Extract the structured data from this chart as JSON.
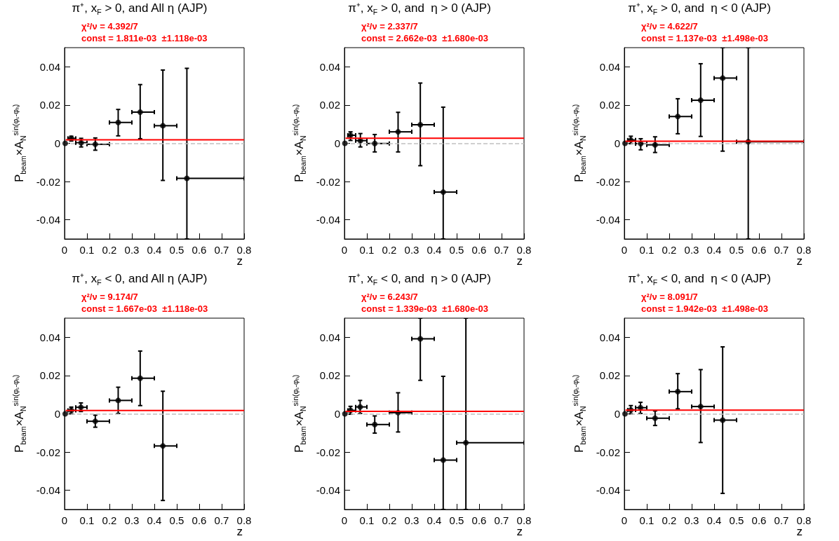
{
  "chart_data": [
    {
      "type": "scatter",
      "title": "π⁺, x$_{F}$ > 0, and All η (AJP)",
      "xlabel": "z",
      "ylabel": "P$_{beam}$×A$_{N}$$^{sin(φₛ-φₕ)}$",
      "xlim": [
        0,
        0.8
      ],
      "ylim": [
        -0.05,
        0.05
      ],
      "xticks": [
        0,
        0.1,
        0.2,
        0.3,
        0.4,
        0.5,
        0.6,
        0.7,
        0.8
      ],
      "yticks": [
        -0.04,
        -0.02,
        0,
        0.02,
        0.04
      ],
      "marker": "circle",
      "annotations": [
        "χ²/ν = 4.392/7",
        "const = 1.811e-03  ±1.118e-03"
      ],
      "ref_lines": [
        {
          "axis": "y",
          "value": 0,
          "color": "#c0c0c0",
          "line_style": "dashed"
        }
      ],
      "series": [
        {
          "type": "scatter",
          "color": "#000000",
          "x": [
            0.003,
            0.03,
            0.074,
            0.137,
            0.239,
            0.337,
            0.438,
            0.545
          ],
          "values": [
            0,
            0.0026,
            0.0003,
            -0.0005,
            0.0109,
            0.0163,
            0.0092,
            -0.0183
          ],
          "errors": [
            null,
            [
              0.0012,
              0.0037
            ],
            [
              -0.0019,
              0.0026
            ],
            [
              -0.0036,
              0.0028
            ],
            [
              0.0039,
              0.0177
            ],
            [
              0.0024,
              0.0307
            ],
            [
              -0.0194,
              0.0383
            ],
            [
              -0.05,
              0.0392
            ]
          ],
          "xerrors": [
            null,
            [
              0.015,
              0.05
            ],
            [
              0.05,
              0.1
            ],
            [
              0.1,
              0.2
            ],
            [
              0.2,
              0.3
            ],
            [
              0.3,
              0.4
            ],
            [
              0.4,
              0.5
            ],
            [
              0.5,
              0.8
            ]
          ]
        },
        {
          "type": "line",
          "color": "#ff0000",
          "marker": "none",
          "x": [
            0.005,
            0.8
          ],
          "values": [
            0.0018,
            0.0018
          ]
        }
      ]
    },
    {
      "type": "scatter",
      "title": "π⁺, x$_{F}$ > 0, and  η > 0 (AJP)",
      "xlabel": "z",
      "ylabel": "P$_{beam}$×A$_{N}$$^{sin(φₛ-φₕ)}$",
      "xlim": [
        0,
        0.8
      ],
      "ylim": [
        -0.05,
        0.05
      ],
      "xticks": [
        0,
        0.1,
        0.2,
        0.3,
        0.4,
        0.5,
        0.6,
        0.7,
        0.8
      ],
      "yticks": [
        -0.04,
        -0.02,
        0,
        0.02,
        0.04
      ],
      "marker": "circle",
      "annotations": [
        "χ²/ν = 2.337/7",
        "const = 2.662e-03  ±1.680e-03"
      ],
      "ref_lines": [
        {
          "axis": "y",
          "value": 0,
          "color": "#c0c0c0",
          "line_style": "dashed"
        }
      ],
      "series": [
        {
          "type": "scatter",
          "color": "#000000",
          "x": [
            0.002,
            0.027,
            0.071,
            0.135,
            0.239,
            0.338,
            0.44
          ],
          "values": [
            0,
            0.0042,
            0.0014,
            -0.0001,
            0.006,
            0.0097,
            -0.0255
          ],
          "errors": [
            null,
            [
              0.0015,
              0.006
            ],
            [
              -0.0019,
              0.0051
            ],
            [
              -0.0045,
              0.0046
            ],
            [
              -0.0045,
              0.0162
            ],
            [
              -0.0117,
              0.0315
            ],
            [
              -0.05,
              0.0189
            ]
          ],
          "xerrors": [
            null,
            [
              0.015,
              0.05
            ],
            [
              0.05,
              0.1
            ],
            [
              0.1,
              0.2
            ],
            [
              0.2,
              0.3
            ],
            [
              0.3,
              0.4
            ],
            [
              0.4,
              0.5
            ]
          ]
        },
        {
          "type": "line",
          "color": "#ff0000",
          "marker": "none",
          "x": [
            0.005,
            0.8
          ],
          "values": [
            0.0027,
            0.0027
          ]
        }
      ]
    },
    {
      "type": "scatter",
      "title": "π⁺, x$_{F}$ > 0, and  η < 0 (AJP)",
      "xlabel": "z",
      "ylabel": "P$_{beam}$×A$_{N}$$^{sin(φₛ-φₕ)}$",
      "xlim": [
        0,
        0.8
      ],
      "ylim": [
        -0.05,
        0.05
      ],
      "xticks": [
        0,
        0.1,
        0.2,
        0.3,
        0.4,
        0.5,
        0.6,
        0.7,
        0.8
      ],
      "yticks": [
        -0.04,
        -0.02,
        0,
        0.02,
        0.04
      ],
      "marker": "circle",
      "annotations": [
        "χ²/ν = 4.622/7",
        "const = 1.137e-03  ±1.498e-03"
      ],
      "ref_lines": [
        {
          "axis": "y",
          "value": 0,
          "color": "#c0c0c0",
          "line_style": "dashed"
        }
      ],
      "series": [
        {
          "type": "scatter",
          "color": "#000000",
          "x": [
            0.003,
            0.029,
            0.073,
            0.137,
            0.238,
            0.34,
            0.438,
            0.552
          ],
          "values": [
            0,
            0.0017,
            -0.0002,
            -0.0008,
            0.014,
            0.0225,
            0.0341,
            0.0008
          ],
          "errors": [
            null,
            [
              -0.0002,
              0.0037
            ],
            [
              -0.0034,
              0.0024
            ],
            [
              -0.0048,
              0.0034
            ],
            [
              0.005,
              0.0233
            ],
            [
              0.0036,
              0.0416
            ],
            [
              -0.0041,
              0.05
            ],
            [
              -0.05,
              0.05
            ]
          ],
          "xerrors": [
            null,
            [
              0.015,
              0.05
            ],
            [
              0.05,
              0.1
            ],
            [
              0.1,
              0.2
            ],
            [
              0.2,
              0.3
            ],
            [
              0.3,
              0.4
            ],
            [
              0.4,
              0.5
            ],
            [
              0.5,
              0.8
            ]
          ]
        },
        {
          "type": "line",
          "color": "#ff0000",
          "marker": "none",
          "x": [
            0.005,
            0.8
          ],
          "values": [
            0.0011,
            0.0011
          ]
        }
      ]
    },
    {
      "type": "scatter",
      "title": "π⁺, x$_{F}$ < 0, and All η (AJP)",
      "xlabel": "z",
      "ylabel": "P$_{beam}$×A$_{N}$$^{sin(φₛ-φₕ)}$",
      "xlim": [
        0,
        0.8
      ],
      "ylim": [
        -0.05,
        0.05
      ],
      "xticks": [
        0,
        0.1,
        0.2,
        0.3,
        0.4,
        0.5,
        0.6,
        0.7,
        0.8
      ],
      "yticks": [
        -0.04,
        -0.02,
        0,
        0.02,
        0.04
      ],
      "marker": "circle",
      "annotations": [
        "χ²/ν = 9.174/7",
        "const = 1.667e-03  ±1.118e-03"
      ],
      "ref_lines": [
        {
          "axis": "y",
          "value": 0,
          "color": "#c0c0c0",
          "line_style": "dashed"
        }
      ],
      "series": [
        {
          "type": "scatter",
          "color": "#000000",
          "x": [
            0.003,
            0.03,
            0.073,
            0.137,
            0.239,
            0.337,
            0.438
          ],
          "values": [
            0,
            0.0018,
            0.0034,
            -0.0039,
            0.007,
            0.0186,
            -0.0168
          ],
          "errors": [
            null,
            [
              0,
              0.0035
            ],
            [
              0.0012,
              0.0057
            ],
            [
              -0.007,
              -0.0007
            ],
            [
              0.0002,
              0.0139
            ],
            [
              0.0043,
              0.0328
            ],
            [
              -0.0453,
              0.0118
            ]
          ],
          "xerrors": [
            null,
            [
              0.015,
              0.05
            ],
            [
              0.05,
              0.1
            ],
            [
              0.1,
              0.2
            ],
            [
              0.2,
              0.3
            ],
            [
              0.3,
              0.4
            ],
            [
              0.4,
              0.5
            ]
          ]
        },
        {
          "type": "line",
          "color": "#ff0000",
          "marker": "none",
          "x": [
            0.005,
            0.8
          ],
          "values": [
            0.0017,
            0.0017
          ]
        }
      ]
    },
    {
      "type": "scatter",
      "title": "π⁺, x$_{F}$ < 0, and  η > 0 (AJP)",
      "xlabel": "z",
      "ylabel": "P$_{beam}$×A$_{N}$$^{sin(φₛ-φₕ)}$",
      "xlim": [
        0,
        0.8
      ],
      "ylim": [
        -0.05,
        0.05
      ],
      "xticks": [
        0,
        0.1,
        0.2,
        0.3,
        0.4,
        0.5,
        0.6,
        0.7,
        0.8
      ],
      "yticks": [
        -0.04,
        -0.02,
        0,
        0.02,
        0.04
      ],
      "marker": "circle",
      "annotations": [
        "χ²/ν = 6.243/7",
        "const = 1.339e-03  ±1.680e-03"
      ],
      "ref_lines": [
        {
          "axis": "y",
          "value": 0,
          "color": "#c0c0c0",
          "line_style": "dashed"
        }
      ],
      "series": [
        {
          "type": "scatter",
          "color": "#000000",
          "x": [
            0.002,
            0.027,
            0.07,
            0.135,
            0.239,
            0.338,
            0.44,
            0.541
          ],
          "values": [
            0,
            0.0018,
            0.0036,
            -0.0056,
            0.0006,
            0.0392,
            -0.0242,
            -0.0151
          ],
          "errors": [
            null,
            [
              -0.0002,
              0.0039
            ],
            [
              0.0002,
              0.007
            ],
            [
              -0.0101,
              -0.0011
            ],
            [
              -0.0095,
              0.011
            ],
            [
              0.0175,
              0.05
            ],
            [
              -0.05,
              0.0196
            ],
            [
              -0.05,
              0.05
            ]
          ],
          "xerrors": [
            null,
            [
              0.015,
              0.05
            ],
            [
              0.05,
              0.1
            ],
            [
              0.1,
              0.2
            ],
            [
              0.2,
              0.3
            ],
            [
              0.3,
              0.4
            ],
            [
              0.4,
              0.5
            ],
            [
              0.5,
              0.8
            ]
          ]
        },
        {
          "type": "line",
          "color": "#ff0000",
          "marker": "none",
          "x": [
            0.005,
            0.8
          ],
          "values": [
            0.0013,
            0.0013
          ]
        }
      ]
    },
    {
      "type": "scatter",
      "title": "π⁺, x$_{F}$ < 0, and  η < 0 (AJP)",
      "xlabel": "z",
      "ylabel": "P$_{beam}$×A$_{N}$$^{sin(φₛ-φₕ)}$",
      "xlim": [
        0,
        0.8
      ],
      "ylim": [
        -0.05,
        0.05
      ],
      "xticks": [
        0,
        0.1,
        0.2,
        0.3,
        0.4,
        0.5,
        0.6,
        0.7,
        0.8
      ],
      "yticks": [
        -0.04,
        -0.02,
        0,
        0.02,
        0.04
      ],
      "marker": "circle",
      "annotations": [
        "χ²/ν = 8.091/7",
        "const = 1.942e-03  ±1.498e-03"
      ],
      "ref_lines": [
        {
          "axis": "y",
          "value": 0,
          "color": "#c0c0c0",
          "line_style": "dashed"
        }
      ],
      "series": [
        {
          "type": "scatter",
          "color": "#000000",
          "x": [
            0.003,
            0.029,
            0.072,
            0.137,
            0.238,
            0.34,
            0.438
          ],
          "values": [
            0,
            0.002,
            0.0032,
            -0.0023,
            0.0116,
            0.0038,
            -0.0033
          ],
          "errors": [
            null,
            [
              0,
              0.0043
            ],
            [
              0.0002,
              0.006
            ],
            [
              -0.0061,
              0.0015
            ],
            [
              0.0026,
              0.021
            ],
            [
              -0.015,
              0.0231
            ],
            [
              -0.0416,
              0.035
            ]
          ],
          "xerrors": [
            null,
            [
              0.015,
              0.05
            ],
            [
              0.05,
              0.1
            ],
            [
              0.1,
              0.2
            ],
            [
              0.2,
              0.3
            ],
            [
              0.3,
              0.4
            ],
            [
              0.4,
              0.5
            ]
          ]
        },
        {
          "type": "line",
          "color": "#ff0000",
          "marker": "none",
          "x": [
            0.005,
            0.8
          ],
          "values": [
            0.0019,
            0.0019
          ]
        }
      ]
    }
  ]
}
